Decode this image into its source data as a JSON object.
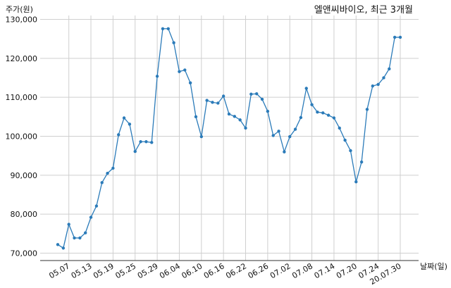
{
  "chart_data": {
    "type": "line",
    "title": "엘앤씨바이오, 최근 3개월",
    "ylabel": "주가(원)",
    "xlabel": "날짜(일)",
    "ylim": [
      68000,
      130000
    ],
    "yticks": [
      70000,
      80000,
      90000,
      100000,
      110000,
      120000,
      130000
    ],
    "ytick_labels": [
      "70,000",
      "80,000",
      "90,000",
      "100,000",
      "110,000",
      "120,000",
      "130,000"
    ],
    "xtick_labels": [
      "05.07",
      "05.13",
      "05.19",
      "05.25",
      "05.29",
      "06.04",
      "06.10",
      "06.16",
      "06.22",
      "06.26",
      "07.02",
      "07.08",
      "07.14",
      "07.20",
      "07.24",
      "20.07.30"
    ],
    "xtick_index": [
      2,
      6,
      10,
      14,
      18,
      22,
      26,
      30,
      34,
      38,
      42,
      46,
      50,
      54,
      58,
      62
    ],
    "grid": true,
    "series": [
      {
        "color": "#2b7bb9",
        "values": [
          72200,
          71300,
          77400,
          73900,
          73900,
          75200,
          79200,
          82100,
          88100,
          90500,
          91800,
          100400,
          104700,
          103100,
          96100,
          98600,
          98600,
          98400,
          115400,
          127600,
          127600,
          124000,
          116600,
          117000,
          113700,
          105000,
          99900,
          109200,
          108700,
          108500,
          110300,
          105700,
          105100,
          104200,
          102100,
          110800,
          110900,
          109500,
          106400,
          100200,
          101300,
          96000,
          99900,
          101800,
          104800,
          112300,
          108100,
          106200,
          106000,
          105400,
          104700,
          102100,
          99000,
          96300,
          88300,
          93400,
          106900,
          112900,
          113300,
          115000,
          117300,
          125400,
          125400
        ]
      }
    ]
  }
}
